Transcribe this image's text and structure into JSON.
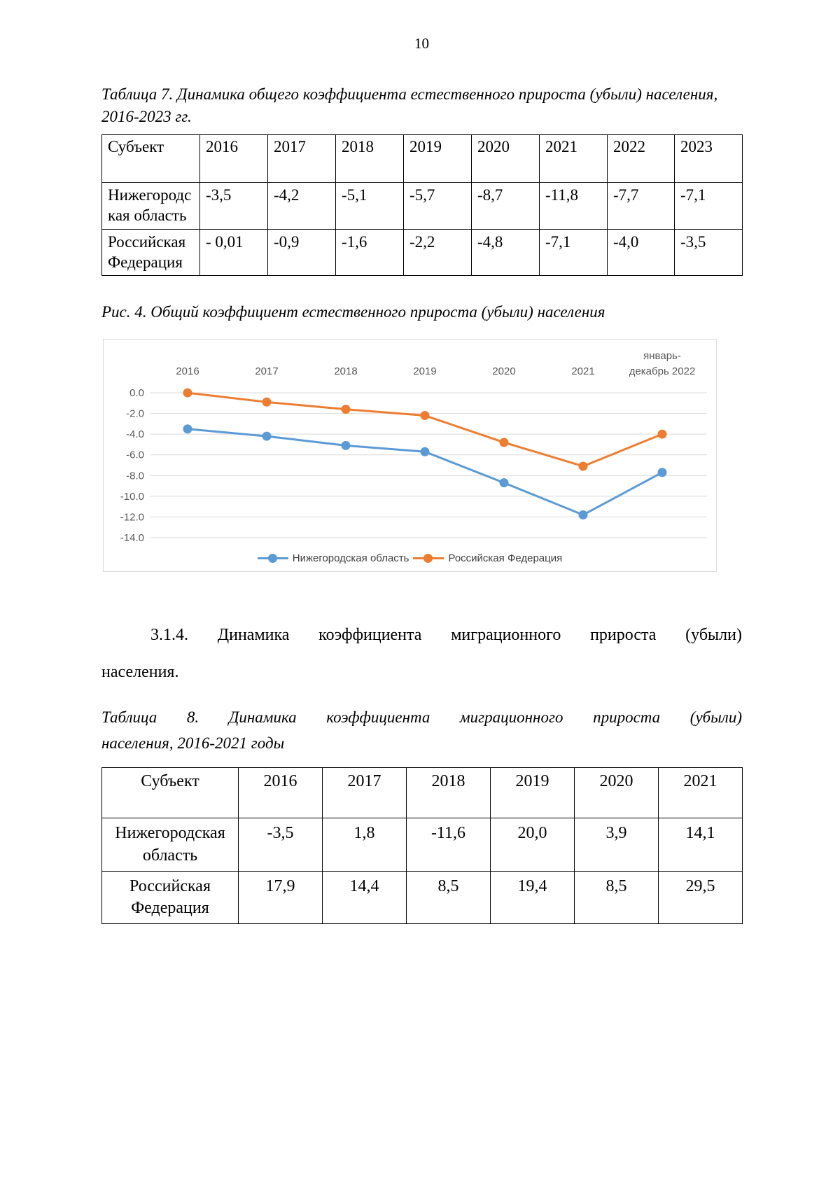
{
  "page": {
    "number": "10"
  },
  "table7": {
    "caption": "Таблица 7. Динамика общего коэффициента естественного прироста (убыли) населения, 2016-2023 гг.",
    "headers": [
      "Субъект",
      "2016",
      "2017",
      "2018",
      "2019",
      "2020",
      "2021",
      "2022",
      "2023"
    ],
    "rows": [
      {
        "label": "Нижегородская область",
        "values": [
          "-3,5",
          "-4,2",
          "-5,1",
          "-5,7",
          "-8,7",
          "-11,8",
          "-7,7",
          "-7,1"
        ]
      },
      {
        "label": "Российская Федерация",
        "values": [
          "- 0,01",
          "-0,9",
          "-1,6",
          "-2,2",
          "-4,8",
          "-7,1",
          "-4,0",
          "-3,5"
        ]
      }
    ]
  },
  "figure4": {
    "caption": "Рис. 4. Общий коэффициент естественного прироста (убыли) населения"
  },
  "chart_data": {
    "type": "line",
    "categories": [
      "2016",
      "2017",
      "2018",
      "2019",
      "2020",
      "2021",
      "январь-\nдекабрь 2022"
    ],
    "series": [
      {
        "name": "Нижегородская область",
        "color": "#5B9BD5",
        "values": [
          -3.5,
          -4.2,
          -5.1,
          -5.7,
          -8.7,
          -11.8,
          -7.7
        ]
      },
      {
        "name": "Российская Федерация",
        "color": "#ED7D31",
        "values": [
          -0.01,
          -0.9,
          -1.6,
          -2.2,
          -4.8,
          -7.1,
          -4.0
        ]
      }
    ],
    "title": "",
    "xlabel": "",
    "ylabel": "",
    "ylim": [
      -14.0,
      0.0
    ],
    "yticks": [
      0.0,
      -2.0,
      -4.0,
      -6.0,
      -8.0,
      -10.0,
      -12.0,
      -14.0
    ],
    "grid": true,
    "legend_position": "bottom",
    "x_labels_position": "top"
  },
  "section": {
    "heading_line1": "3.1.4. Динамика коэффициента миграционного прироста (убыли)",
    "heading_line2": "населения."
  },
  "table8": {
    "caption_line1": "Таблица 8. Динамика коэффициента миграционного прироста (убыли)",
    "caption_line2": "населения, 2016-2021 годы",
    "headers": [
      "Субъект",
      "2016",
      "2017",
      "2018",
      "2019",
      "2020",
      "2021"
    ],
    "rows": [
      {
        "label": "Нижегородская область",
        "values": [
          "-3,5",
          "1,8",
          "-11,6",
          "20,0",
          "3,9",
          "14,1"
        ]
      },
      {
        "label": "Российская Федерация",
        "values": [
          "17,9",
          "14,4",
          "8,5",
          "19,4",
          "8,5",
          "29,5"
        ]
      }
    ]
  }
}
